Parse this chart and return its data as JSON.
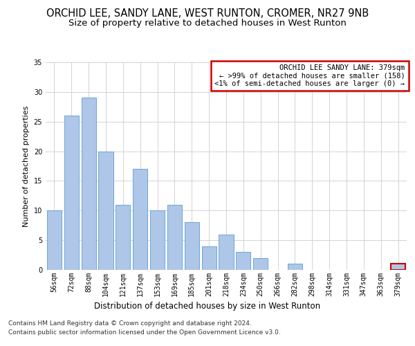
{
  "title1": "ORCHID LEE, SANDY LANE, WEST RUNTON, CROMER, NR27 9NB",
  "title2": "Size of property relative to detached houses in West Runton",
  "xlabel": "Distribution of detached houses by size in West Runton",
  "ylabel": "Number of detached properties",
  "categories": [
    "56sqm",
    "72sqm",
    "88sqm",
    "104sqm",
    "121sqm",
    "137sqm",
    "153sqm",
    "169sqm",
    "185sqm",
    "201sqm",
    "218sqm",
    "234sqm",
    "250sqm",
    "266sqm",
    "282sqm",
    "298sqm",
    "314sqm",
    "331sqm",
    "347sqm",
    "363sqm",
    "379sqm"
  ],
  "values": [
    10,
    26,
    29,
    20,
    11,
    17,
    10,
    11,
    8,
    4,
    6,
    3,
    2,
    0,
    1,
    0,
    0,
    0,
    0,
    0,
    1
  ],
  "bar_color": "#aec6e8",
  "bar_edge_color": "#5b9bd5",
  "highlight_bar_index": 20,
  "highlight_bar_edge_color": "#cc0000",
  "annotation_box_text": "ORCHID LEE SANDY LANE: 379sqm\n← >99% of detached houses are smaller (158)\n<1% of semi-detached houses are larger (0) →",
  "annotation_box_edge_color": "#cc0000",
  "annotation_box_bg": "#ffffff",
  "ylim": [
    0,
    35
  ],
  "yticks": [
    0,
    5,
    10,
    15,
    20,
    25,
    30,
    35
  ],
  "background_color": "#ffffff",
  "grid_color": "#cccccc",
  "footnote1": "Contains HM Land Registry data © Crown copyright and database right 2024.",
  "footnote2": "Contains public sector information licensed under the Open Government Licence v3.0.",
  "title1_fontsize": 10.5,
  "title2_fontsize": 9.5,
  "xlabel_fontsize": 8.5,
  "ylabel_fontsize": 8,
  "tick_fontsize": 7,
  "annotation_fontsize": 7.5,
  "footnote_fontsize": 6.5
}
